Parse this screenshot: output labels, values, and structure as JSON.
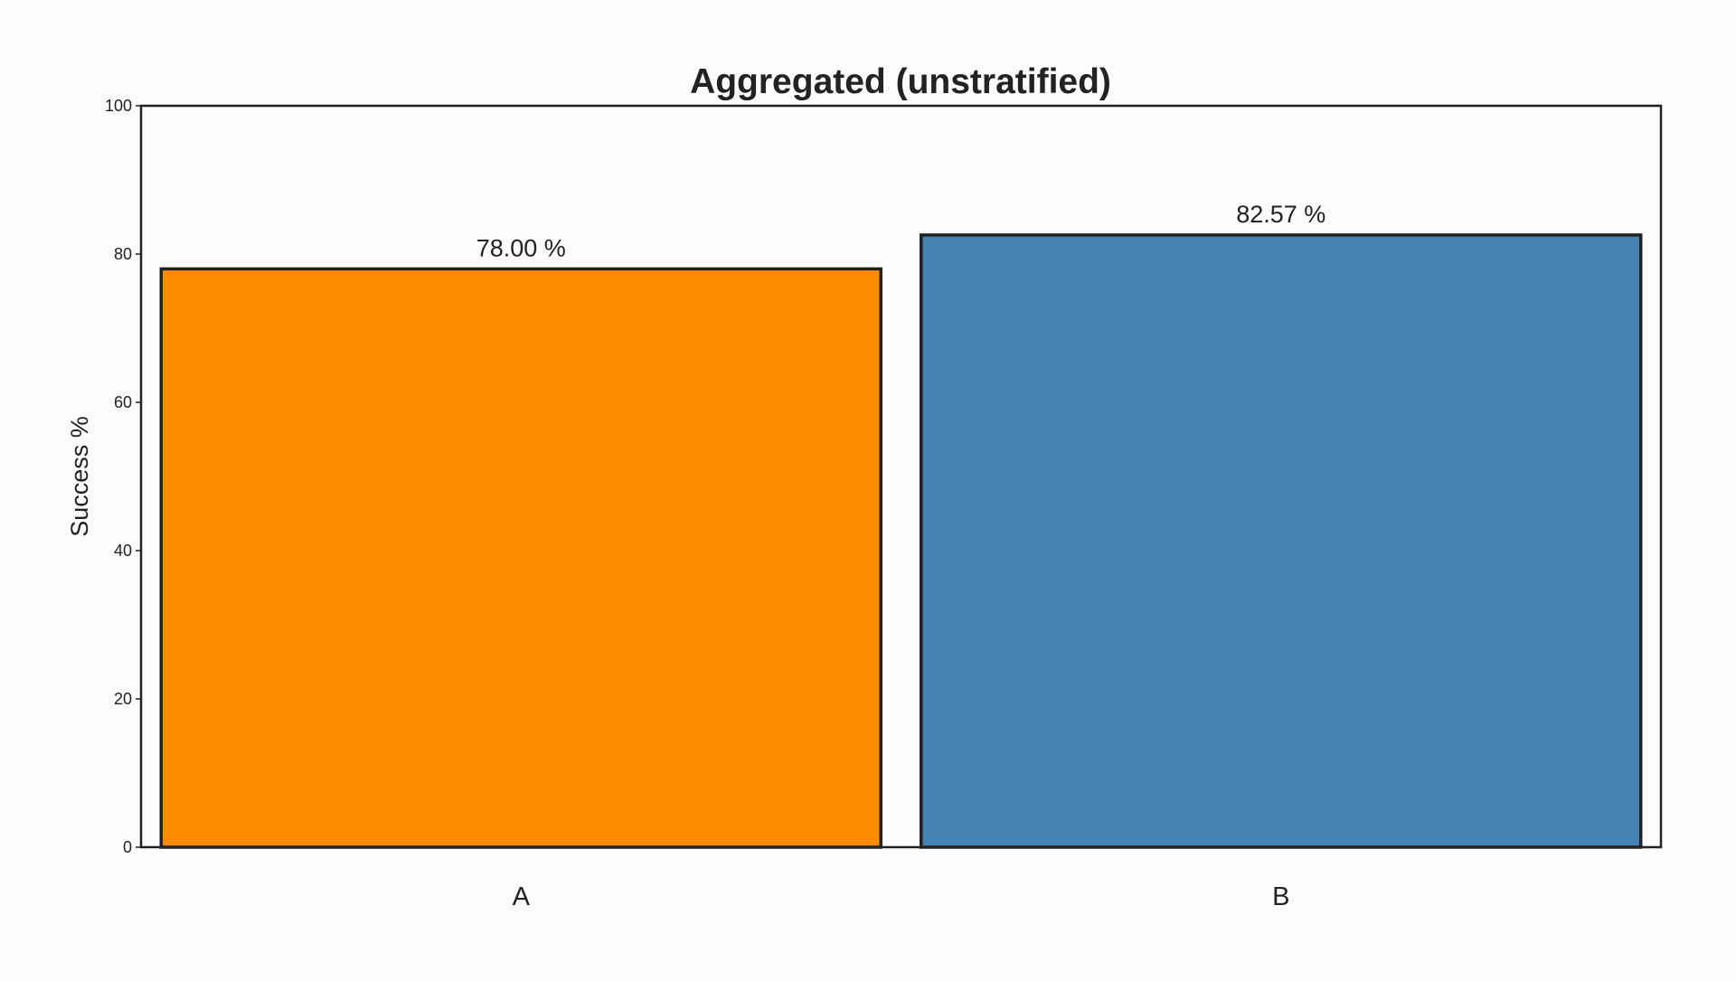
{
  "chart_data": {
    "type": "bar",
    "title": "Aggregated (unstratified)",
    "xlabel": "",
    "ylabel": "Success %",
    "ylim": [
      0,
      100
    ],
    "yticks": [
      0,
      20,
      40,
      60,
      80,
      100
    ],
    "grid": false,
    "legend": "none",
    "categories": [
      "A",
      "B"
    ],
    "values": [
      78.0,
      82.57
    ],
    "value_labels": [
      "78.00 %",
      "82.57 %"
    ],
    "colors": [
      "#ff8c00",
      "#4682b4"
    ]
  }
}
